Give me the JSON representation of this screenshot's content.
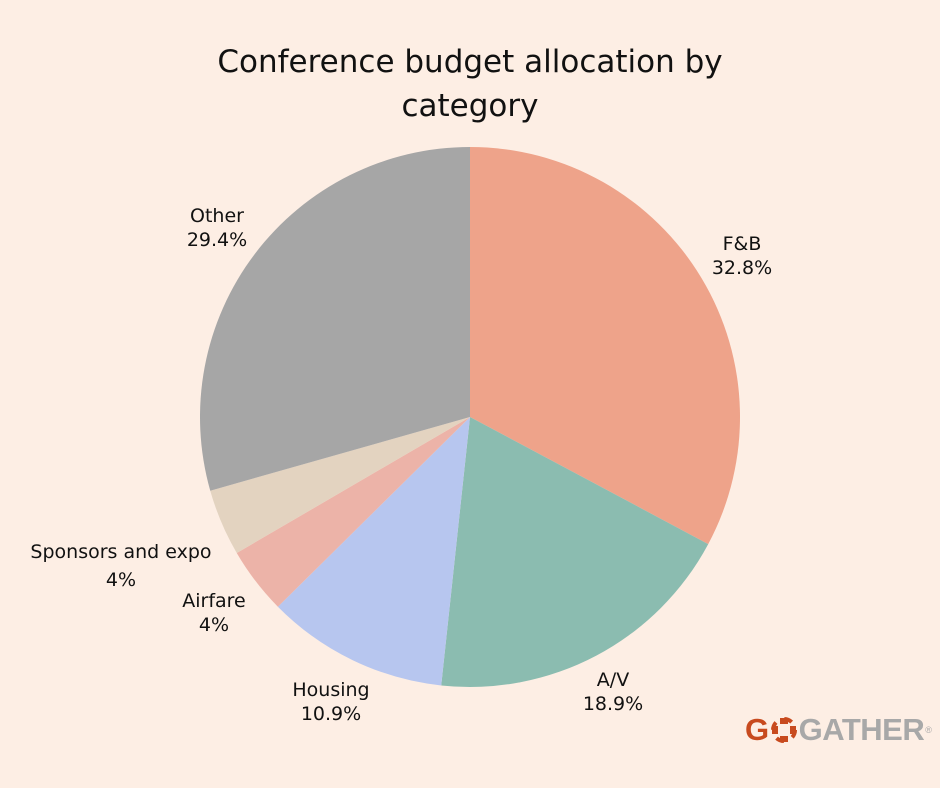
{
  "chart_data": {
    "type": "pie",
    "title": "Conference budget allocation by category",
    "categories": [
      "F&B",
      "A/V",
      "Housing",
      "Airfare",
      "Sponsors and expo",
      "Other"
    ],
    "values": [
      32.8,
      18.9,
      10.9,
      4,
      4,
      29.4
    ],
    "value_labels": [
      "32.8%",
      "18.9%",
      "10.9%",
      "4%",
      "4%",
      "29.4%"
    ],
    "colors": [
      "#eea38a",
      "#8bbcb0",
      "#b7c6ef",
      "#ecb3a8",
      "#e3d3c0",
      "#a6a6a6"
    ],
    "start_angle": "12 o'clock",
    "direction": "clockwise",
    "legend": "none (labels outside slices)"
  },
  "title_line1": "Conference budget allocation by",
  "title_line2": "category",
  "labels": [
    {
      "name": "F&B",
      "pct": "32.8%"
    },
    {
      "name": "A/V",
      "pct": "18.9%"
    },
    {
      "name": "Housing",
      "pct": "10.9%"
    },
    {
      "name": "Airfare",
      "pct": "4%"
    },
    {
      "name": "Sponsors and expo",
      "pct": "4%"
    },
    {
      "name": "Other",
      "pct": "29.4%"
    }
  ],
  "logo": {
    "g": "G",
    "rest": "GATHER",
    "mark": "®"
  },
  "background": "#fdeee4"
}
